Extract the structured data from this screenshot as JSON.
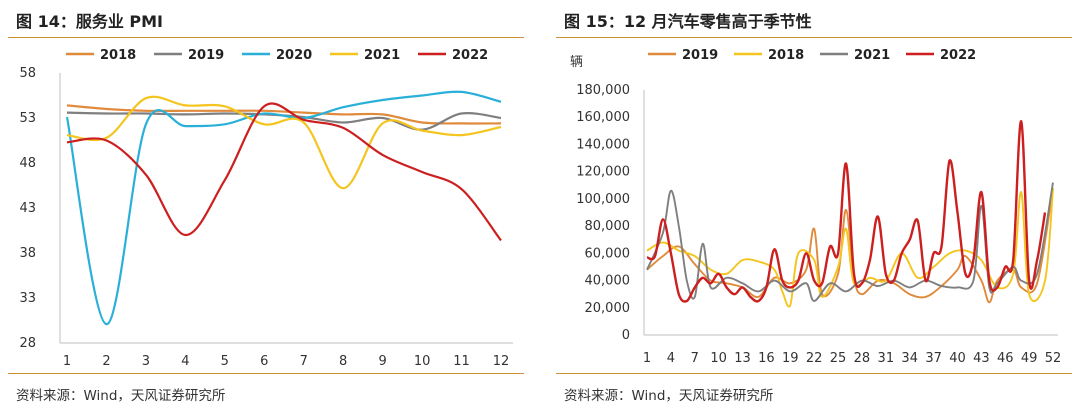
{
  "left": {
    "title": "图 14：服务业 PMI",
    "source": "资料来源：Wind，天风证券研究所",
    "chart_data": {
      "type": "line",
      "title": "服务业 PMI",
      "x": [
        1,
        2,
        3,
        4,
        5,
        6,
        7,
        8,
        9,
        10,
        11,
        12
      ],
      "x_tick_labels": [
        "1",
        "2",
        "3",
        "4",
        "5",
        "6",
        "7",
        "8",
        "9",
        "10",
        "11",
        "12"
      ],
      "ylim": [
        28,
        58
      ],
      "y_ticks": [
        28,
        33,
        38,
        43,
        48,
        53,
        58
      ],
      "legend_placement": "top",
      "series": [
        {
          "name": "2018",
          "color": "#e08a3c",
          "values": [
            54.4,
            54.0,
            53.8,
            53.8,
            53.8,
            53.8,
            53.6,
            53.4,
            53.4,
            52.5,
            52.4,
            52.4
          ]
        },
        {
          "name": "2019",
          "color": "#7f7f7f",
          "values": [
            53.6,
            53.5,
            53.5,
            53.4,
            53.5,
            53.4,
            53.1,
            52.5,
            53.0,
            51.7,
            53.5,
            53.0
          ]
        },
        {
          "name": "2020",
          "color": "#2ab0d8",
          "values": [
            53.1,
            30.1,
            52.3,
            52.1,
            52.3,
            53.5,
            53.0,
            54.2,
            55.0,
            55.5,
            55.9,
            54.8
          ]
        },
        {
          "name": "2021",
          "color": "#f4c51f",
          "values": [
            51.1,
            50.8,
            55.2,
            54.4,
            54.3,
            52.3,
            52.5,
            45.2,
            52.4,
            51.6,
            51.1,
            52.0
          ]
        },
        {
          "name": "2022",
          "color": "#cc1f1f",
          "values": [
            50.3,
            50.5,
            46.7,
            40.0,
            46.1,
            54.3,
            52.8,
            51.9,
            48.9,
            47.0,
            45.1,
            39.4
          ]
        }
      ]
    }
  },
  "right": {
    "title": "图 15：12 月汽车零售高于季节性",
    "source": "资料来源：Wind，天风证券研究所",
    "chart_data": {
      "type": "line",
      "title": "12 月汽车零售高于季节性",
      "ylabel": "辆",
      "x_tick_labels": [
        "1",
        "4",
        "7",
        "10",
        "13",
        "16",
        "19",
        "22",
        "25",
        "28",
        "31",
        "34",
        "37",
        "40",
        "43",
        "46",
        "49",
        "52"
      ],
      "ylim": [
        0,
        180000
      ],
      "y_tick_labels": [
        "0",
        "20,000",
        "40,000",
        "60,000",
        "80,000",
        "100,000",
        "120,000",
        "140,000",
        "160,000",
        "180,000"
      ],
      "legend_placement": "top",
      "series": [
        {
          "name": "2019",
          "color": "#e08a3c",
          "anchors": [
            [
              1,
              48000
            ],
            [
              3,
              58000
            ],
            [
              5,
              65000
            ],
            [
              7,
              52000
            ],
            [
              9,
              40000
            ],
            [
              11,
              38000
            ],
            [
              13,
              35000
            ],
            [
              15,
              28000
            ],
            [
              17,
              42000
            ],
            [
              19,
              38000
            ],
            [
              21,
              48000
            ],
            [
              22,
              78000
            ],
            [
              23,
              30000
            ],
            [
              25,
              45000
            ],
            [
              26,
              92000
            ],
            [
              27,
              42000
            ],
            [
              28,
              30000
            ],
            [
              30,
              40000
            ],
            [
              32,
              38000
            ],
            [
              34,
              30000
            ],
            [
              36,
              28000
            ],
            [
              38,
              36000
            ],
            [
              40,
              48000
            ],
            [
              41,
              58000
            ],
            [
              43,
              40000
            ],
            [
              44,
              24000
            ],
            [
              45,
              40000
            ],
            [
              47,
              48000
            ],
            [
              48,
              35000
            ],
            [
              50,
              38000
            ],
            [
              52,
              108000
            ]
          ]
        },
        {
          "name": "2018",
          "color": "#f4c51f",
          "anchors": [
            [
              1,
              62000
            ],
            [
              3,
              68000
            ],
            [
              5,
              62000
            ],
            [
              7,
              58000
            ],
            [
              9,
              48000
            ],
            [
              11,
              45000
            ],
            [
              13,
              55000
            ],
            [
              15,
              54000
            ],
            [
              17,
              48000
            ],
            [
              18,
              32000
            ],
            [
              19,
              22000
            ],
            [
              20,
              60000
            ],
            [
              22,
              55000
            ],
            [
              23,
              28000
            ],
            [
              25,
              50000
            ],
            [
              26,
              78000
            ],
            [
              27,
              38000
            ],
            [
              29,
              42000
            ],
            [
              31,
              40000
            ],
            [
              33,
              60000
            ],
            [
              35,
              42000
            ],
            [
              37,
              50000
            ],
            [
              39,
              60000
            ],
            [
              41,
              62000
            ],
            [
              43,
              55000
            ],
            [
              45,
              35000
            ],
            [
              47,
              45000
            ],
            [
              48,
              105000
            ],
            [
              49,
              30000
            ],
            [
              51,
              40000
            ],
            [
              52,
              108000
            ]
          ]
        },
        {
          "name": "2021",
          "color": "#7f7f7f",
          "anchors": [
            [
              1,
              48000
            ],
            [
              3,
              75000
            ],
            [
              4,
              106000
            ],
            [
              5,
              80000
            ],
            [
              6,
              40000
            ],
            [
              7,
              28000
            ],
            [
              8,
              67000
            ],
            [
              9,
              35000
            ],
            [
              11,
              42000
            ],
            [
              13,
              38000
            ],
            [
              15,
              32000
            ],
            [
              17,
              40000
            ],
            [
              19,
              32000
            ],
            [
              21,
              38000
            ],
            [
              22,
              25000
            ],
            [
              24,
              38000
            ],
            [
              26,
              32000
            ],
            [
              28,
              40000
            ],
            [
              30,
              36000
            ],
            [
              32,
              40000
            ],
            [
              34,
              35000
            ],
            [
              36,
              40000
            ],
            [
              38,
              36000
            ],
            [
              40,
              35000
            ],
            [
              42,
              40000
            ],
            [
              43,
              95000
            ],
            [
              44,
              35000
            ],
            [
              45,
              38000
            ],
            [
              47,
              50000
            ],
            [
              48,
              40000
            ],
            [
              50,
              45000
            ],
            [
              52,
              112000
            ]
          ]
        },
        {
          "name": "2022",
          "color": "#cc1f1f",
          "anchors": [
            [
              1,
              57000
            ],
            [
              2,
              58000
            ],
            [
              3,
              85000
            ],
            [
              4,
              60000
            ],
            [
              5,
              30000
            ],
            [
              6,
              25000
            ],
            [
              7,
              35000
            ],
            [
              8,
              42000
            ],
            [
              9,
              38000
            ],
            [
              10,
              45000
            ],
            [
              11,
              35000
            ],
            [
              12,
              30000
            ],
            [
              13,
              35000
            ],
            [
              14,
              28000
            ],
            [
              15,
              25000
            ],
            [
              16,
              35000
            ],
            [
              17,
              63000
            ],
            [
              18,
              40000
            ],
            [
              19,
              35000
            ],
            [
              20,
              40000
            ],
            [
              21,
              60000
            ],
            [
              22,
              40000
            ],
            [
              23,
              38000
            ],
            [
              24,
              65000
            ],
            [
              25,
              60000
            ],
            [
              26,
              126000
            ],
            [
              27,
              45000
            ],
            [
              28,
              38000
            ],
            [
              29,
              55000
            ],
            [
              30,
              87000
            ],
            [
              31,
              45000
            ],
            [
              32,
              40000
            ],
            [
              33,
              60000
            ],
            [
              34,
              70000
            ],
            [
              35,
              84000
            ],
            [
              36,
              40000
            ],
            [
              37,
              60000
            ],
            [
              38,
              65000
            ],
            [
              39,
              128000
            ],
            [
              40,
              90000
            ],
            [
              41,
              45000
            ],
            [
              42,
              55000
            ],
            [
              43,
              105000
            ],
            [
              44,
              40000
            ],
            [
              45,
              35000
            ],
            [
              46,
              50000
            ],
            [
              47,
              55000
            ],
            [
              48,
              157000
            ],
            [
              49,
              40000
            ],
            [
              50,
              55000
            ],
            [
              51,
              90000
            ]
          ]
        }
      ]
    }
  }
}
